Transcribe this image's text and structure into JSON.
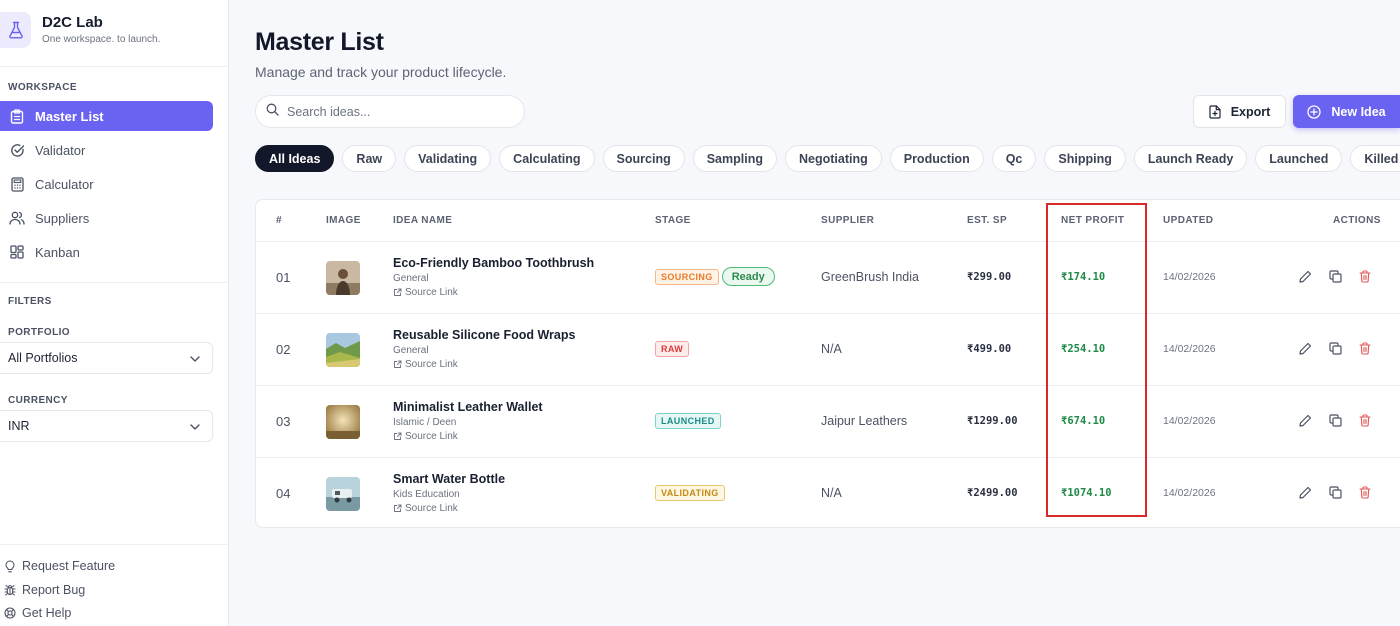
{
  "app": {
    "name": "D2C Lab",
    "tagline": "One workspace. to launch."
  },
  "sidebar": {
    "workspace_label": "WORKSPACE",
    "items": [
      {
        "label": "Master List",
        "icon": "clipboard-icon",
        "active": true
      },
      {
        "label": "Validator",
        "icon": "check-circle-icon"
      },
      {
        "label": "Calculator",
        "icon": "calculator-icon"
      },
      {
        "label": "Suppliers",
        "icon": "users-icon"
      },
      {
        "label": "Kanban",
        "icon": "kanban-icon"
      }
    ],
    "filters_label": "FILTERS",
    "portfolio_label": "PORTFOLIO",
    "portfolio_value": "All Portfolios",
    "currency_label": "CURRENCY",
    "currency_value": "INR",
    "footer": [
      {
        "label": "Request Feature",
        "icon": "lightbulb-icon"
      },
      {
        "label": "Report Bug",
        "icon": "bug-icon"
      },
      {
        "label": "Get Help",
        "icon": "help-buoy-icon"
      }
    ]
  },
  "header": {
    "title": "Master List",
    "subtitle": "Manage and track your product lifecycle."
  },
  "search": {
    "placeholder": "Search ideas...",
    "value": ""
  },
  "toolbar": {
    "export_label": "Export",
    "new_label": "New Idea"
  },
  "filters": [
    "All Ideas",
    "Raw",
    "Validating",
    "Calculating",
    "Sourcing",
    "Sampling",
    "Negotiating",
    "Production",
    "Qc",
    "Shipping",
    "Launch Ready",
    "Launched",
    "Killed"
  ],
  "active_filter": "All Ideas",
  "table": {
    "columns": [
      "#",
      "IMAGE",
      "IDEA NAME",
      "STAGE",
      "SUPPLIER",
      "EST. SP",
      "NET PROFIT",
      "UPDATED",
      "ACTIONS"
    ],
    "rows": [
      {
        "num": "01",
        "name": "Eco-Friendly Bamboo Toothbrush",
        "category": "General",
        "source": "Source Link",
        "stage": "SOURCING",
        "status": "Ready",
        "supplier": "GreenBrush India",
        "est_sp": "₹299.00",
        "net_profit": "₹174.10",
        "updated": "14/02/2026"
      },
      {
        "num": "02",
        "name": "Reusable Silicone Food Wraps",
        "category": "General",
        "source": "Source Link",
        "stage": "RAW",
        "supplier": "N/A",
        "est_sp": "₹499.00",
        "net_profit": "₹254.10",
        "updated": "14/02/2026"
      },
      {
        "num": "03",
        "name": "Minimalist Leather Wallet",
        "category": "Islamic / Deen",
        "source": "Source Link",
        "stage": "LAUNCHED",
        "supplier": "Jaipur Leathers",
        "est_sp": "₹1299.00",
        "net_profit": "₹674.10",
        "updated": "14/02/2026"
      },
      {
        "num": "04",
        "name": "Smart Water Bottle",
        "category": "Kids Education",
        "source": "Source Link",
        "stage": "VALIDATING",
        "supplier": "N/A",
        "est_sp": "₹2499.00",
        "net_profit": "₹1074.10",
        "updated": "14/02/2026"
      }
    ]
  },
  "colors": {
    "accent": "#6a62f0",
    "profit": "#1f8a46",
    "delete": "#e25555",
    "highlight": "#d42a2a"
  }
}
